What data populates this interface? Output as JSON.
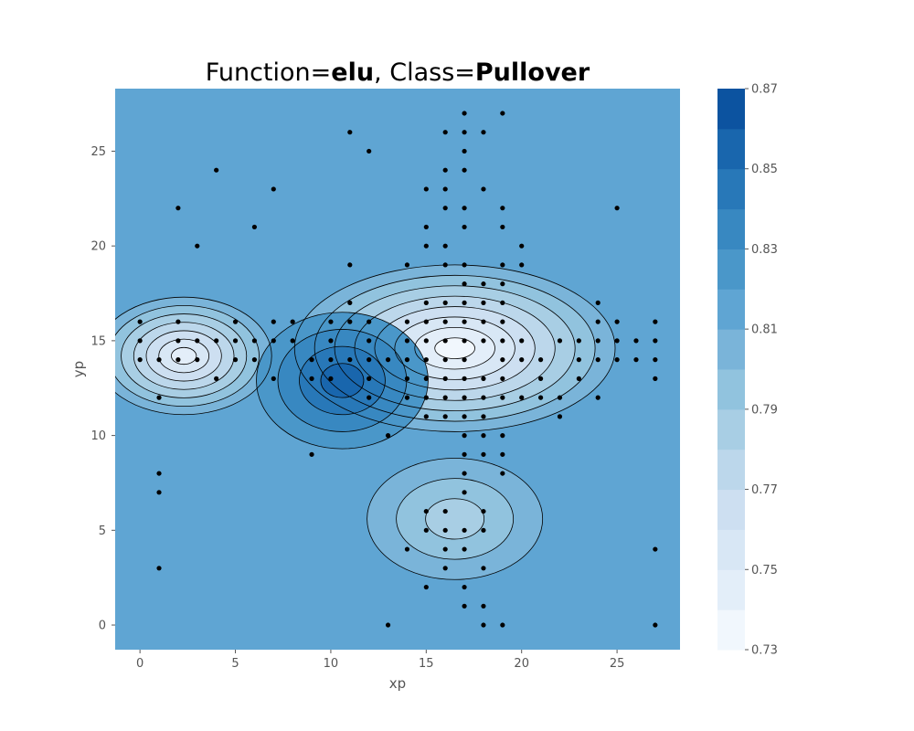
{
  "chart_data": {
    "type": "contour",
    "title": {
      "prefix": "Function=",
      "function": "elu",
      "separator": ", Class=",
      "class_name": "Pullover"
    },
    "xlabel": "xp",
    "ylabel": "yp",
    "xlim": [
      -1.3,
      28.3
    ],
    "ylim": [
      28.3,
      -1.3
    ],
    "y_inverted": true,
    "grid": false,
    "x_ticks": [
      0,
      5,
      10,
      15,
      20,
      25
    ],
    "y_ticks": [
      0,
      5,
      10,
      15,
      20,
      25
    ],
    "colormap": "Blues",
    "colorbar": {
      "range": [
        0.73,
        0.87
      ],
      "levels": [
        0.73,
        0.74,
        0.75,
        0.76,
        0.77,
        0.78,
        0.79,
        0.8,
        0.81,
        0.82,
        0.83,
        0.84,
        0.85,
        0.86,
        0.87
      ],
      "colors": [
        "#f1f7fd",
        "#e3eef9",
        "#d8e7f5",
        "#cddff1",
        "#bcd7eb",
        "#a8cee4",
        "#91c3de",
        "#7ab4d9",
        "#5fa5d3",
        "#4a97c9",
        "#3888c1",
        "#2878b8",
        "#1966ad",
        "#0c53a0",
        "#08397e"
      ],
      "tick_labels": [
        "0.73",
        "0.75",
        "0.77",
        "0.79",
        "0.81",
        "0.83",
        "0.85",
        "0.87"
      ]
    },
    "background_level": 0.815,
    "regions": [
      {
        "id": "left-hollow",
        "cx": 2.3,
        "cy": 14.2,
        "rx": 4.6,
        "ry": 3.1,
        "peak": 0.745
      },
      {
        "id": "center-right-hollow",
        "cx": 16.5,
        "cy": 14.6,
        "rx": 8.4,
        "ry": 4.4,
        "peak": 0.73
      },
      {
        "id": "upper-right-hollow",
        "cx": 16.5,
        "cy": 5.6,
        "rx": 4.6,
        "ry": 3.2,
        "peak": 0.785
      },
      {
        "id": "center-peak",
        "cx": 10.6,
        "cy": 12.9,
        "rx": 4.5,
        "ry": 3.6,
        "peak": 0.855
      }
    ],
    "points": [
      [
        13,
        0
      ],
      [
        18,
        0
      ],
      [
        19,
        0
      ],
      [
        27,
        0
      ],
      [
        17,
        1
      ],
      [
        18,
        1
      ],
      [
        15,
        2
      ],
      [
        17,
        2
      ],
      [
        1,
        3
      ],
      [
        16,
        3
      ],
      [
        18,
        3
      ],
      [
        14,
        4
      ],
      [
        16,
        4
      ],
      [
        17,
        4
      ],
      [
        27,
        4
      ],
      [
        15,
        5
      ],
      [
        16,
        5
      ],
      [
        17,
        5
      ],
      [
        18,
        5
      ],
      [
        15,
        6
      ],
      [
        16,
        6
      ],
      [
        18,
        6
      ],
      [
        1,
        7
      ],
      [
        17,
        7
      ],
      [
        1,
        8
      ],
      [
        17,
        8
      ],
      [
        19,
        8
      ],
      [
        9,
        9
      ],
      [
        17,
        9
      ],
      [
        18,
        9
      ],
      [
        19,
        9
      ],
      [
        13,
        10
      ],
      [
        17,
        10
      ],
      [
        18,
        10
      ],
      [
        19,
        10
      ],
      [
        15,
        11
      ],
      [
        16,
        11
      ],
      [
        17,
        11
      ],
      [
        18,
        11
      ],
      [
        22,
        11
      ],
      [
        1,
        12
      ],
      [
        12,
        12
      ],
      [
        14,
        12
      ],
      [
        15,
        12
      ],
      [
        16,
        12
      ],
      [
        17,
        12
      ],
      [
        18,
        12
      ],
      [
        19,
        12
      ],
      [
        20,
        12
      ],
      [
        21,
        12
      ],
      [
        22,
        12
      ],
      [
        24,
        12
      ],
      [
        4,
        13
      ],
      [
        7,
        13
      ],
      [
        9,
        13
      ],
      [
        10,
        13
      ],
      [
        12,
        13
      ],
      [
        14,
        13
      ],
      [
        15,
        13
      ],
      [
        16,
        13
      ],
      [
        17,
        13
      ],
      [
        18,
        13
      ],
      [
        19,
        13
      ],
      [
        21,
        13
      ],
      [
        23,
        13
      ],
      [
        27,
        13
      ],
      [
        0,
        14
      ],
      [
        1,
        14
      ],
      [
        2,
        14
      ],
      [
        3,
        14
      ],
      [
        5,
        14
      ],
      [
        6,
        14
      ],
      [
        9,
        14
      ],
      [
        10,
        14
      ],
      [
        11,
        14
      ],
      [
        12,
        14
      ],
      [
        13,
        14
      ],
      [
        14,
        14
      ],
      [
        15,
        14
      ],
      [
        16,
        14
      ],
      [
        17,
        14
      ],
      [
        19,
        14
      ],
      [
        20,
        14
      ],
      [
        21,
        14
      ],
      [
        23,
        14
      ],
      [
        24,
        14
      ],
      [
        25,
        14
      ],
      [
        26,
        14
      ],
      [
        27,
        14
      ],
      [
        0,
        15
      ],
      [
        2,
        15
      ],
      [
        3,
        15
      ],
      [
        4,
        15
      ],
      [
        5,
        15
      ],
      [
        6,
        15
      ],
      [
        7,
        15
      ],
      [
        8,
        15
      ],
      [
        10,
        15
      ],
      [
        12,
        15
      ],
      [
        14,
        15
      ],
      [
        15,
        15
      ],
      [
        16,
        15
      ],
      [
        17,
        15
      ],
      [
        18,
        15
      ],
      [
        19,
        15
      ],
      [
        20,
        15
      ],
      [
        22,
        15
      ],
      [
        23,
        15
      ],
      [
        24,
        15
      ],
      [
        25,
        15
      ],
      [
        26,
        15
      ],
      [
        27,
        15
      ],
      [
        0,
        16
      ],
      [
        2,
        16
      ],
      [
        5,
        16
      ],
      [
        7,
        16
      ],
      [
        8,
        16
      ],
      [
        10,
        16
      ],
      [
        11,
        16
      ],
      [
        12,
        16
      ],
      [
        14,
        16
      ],
      [
        15,
        16
      ],
      [
        16,
        16
      ],
      [
        17,
        16
      ],
      [
        18,
        16
      ],
      [
        19,
        16
      ],
      [
        24,
        16
      ],
      [
        25,
        16
      ],
      [
        27,
        16
      ],
      [
        11,
        17
      ],
      [
        15,
        17
      ],
      [
        16,
        17
      ],
      [
        17,
        17
      ],
      [
        18,
        17
      ],
      [
        19,
        17
      ],
      [
        24,
        17
      ],
      [
        17,
        18
      ],
      [
        18,
        18
      ],
      [
        19,
        18
      ],
      [
        11,
        19
      ],
      [
        14,
        19
      ],
      [
        16,
        19
      ],
      [
        17,
        19
      ],
      [
        19,
        19
      ],
      [
        20,
        19
      ],
      [
        3,
        20
      ],
      [
        15,
        20
      ],
      [
        16,
        20
      ],
      [
        20,
        20
      ],
      [
        6,
        21
      ],
      [
        15,
        21
      ],
      [
        17,
        21
      ],
      [
        19,
        21
      ],
      [
        2,
        22
      ],
      [
        16,
        22
      ],
      [
        17,
        22
      ],
      [
        19,
        22
      ],
      [
        25,
        22
      ],
      [
        7,
        23
      ],
      [
        15,
        23
      ],
      [
        16,
        23
      ],
      [
        18,
        23
      ],
      [
        4,
        24
      ],
      [
        16,
        24
      ],
      [
        17,
        24
      ],
      [
        12,
        25
      ],
      [
        17,
        25
      ],
      [
        11,
        26
      ],
      [
        16,
        26
      ],
      [
        17,
        26
      ],
      [
        18,
        26
      ],
      [
        17,
        27
      ],
      [
        19,
        27
      ]
    ]
  }
}
